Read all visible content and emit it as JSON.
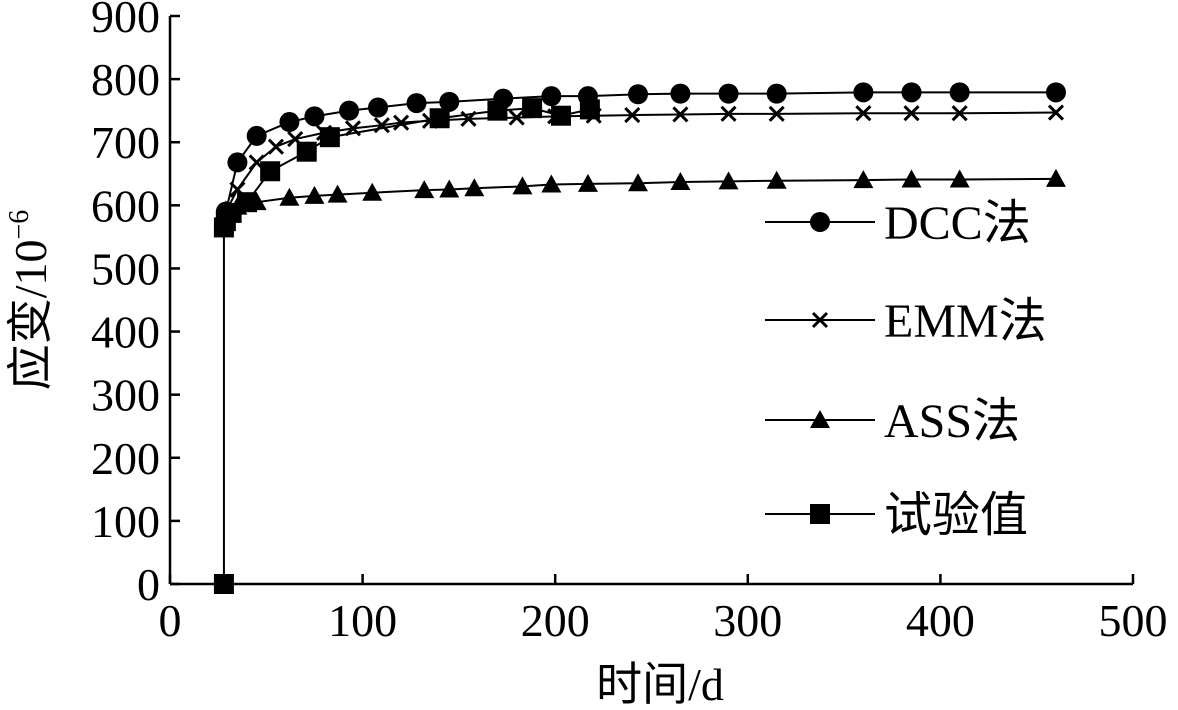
{
  "chart_data": {
    "type": "line",
    "xlabel": "时间/d",
    "ylabel_main": "应变/10",
    "ylabel_exponent": "−6",
    "xlim": [
      0,
      500
    ],
    "ylim": [
      0,
      900
    ],
    "xticks": [
      "0",
      "100",
      "200",
      "300",
      "400",
      "500"
    ],
    "yticks": [
      "0",
      "100",
      "200",
      "300",
      "400",
      "500",
      "600",
      "700",
      "800",
      "900"
    ],
    "grid": false,
    "legend_position": "right",
    "series": [
      {
        "name": "DCC法",
        "marker": "circle",
        "x": [
          28,
          29,
          35,
          45,
          62,
          75,
          93,
          108,
          128,
          145,
          173,
          198,
          217,
          243,
          265,
          290,
          315,
          360,
          385,
          410,
          460
        ],
        "y": [
          570,
          590,
          668,
          710,
          732,
          741,
          750,
          755,
          762,
          764,
          769,
          773,
          773,
          776,
          777,
          777,
          777,
          779,
          779,
          779,
          779
        ]
      },
      {
        "name": "EMM法",
        "marker": "x",
        "x": [
          28,
          29,
          35,
          45,
          55,
          65,
          80,
          95,
          110,
          120,
          135,
          155,
          180,
          200,
          220,
          240,
          265,
          290,
          315,
          360,
          385,
          410,
          460
        ],
        "y": [
          570,
          590,
          625,
          668,
          693,
          705,
          715,
          722,
          727,
          731,
          734,
          737,
          739,
          741,
          742,
          743,
          744,
          745,
          745,
          746,
          746,
          746,
          747
        ]
      },
      {
        "name": "ASS法",
        "marker": "triangle",
        "x": [
          28,
          29,
          35,
          45,
          62,
          75,
          87,
          105,
          132,
          145,
          158,
          183,
          198,
          217,
          243,
          265,
          290,
          315,
          360,
          385,
          410,
          460
        ],
        "y": [
          570,
          592,
          598,
          605,
          612,
          615,
          617,
          620,
          624,
          625,
          627,
          630,
          633,
          634,
          635,
          637,
          638,
          639,
          640,
          641,
          641,
          642
        ]
      },
      {
        "name": "试验值",
        "marker": "square",
        "x": [
          28,
          28,
          29,
          32,
          40,
          52,
          71,
          83,
          140,
          170,
          188,
          203,
          218
        ],
        "y": [
          0,
          565,
          575,
          588,
          605,
          654,
          685,
          708,
          738,
          750,
          754,
          742,
          752
        ]
      }
    ]
  }
}
